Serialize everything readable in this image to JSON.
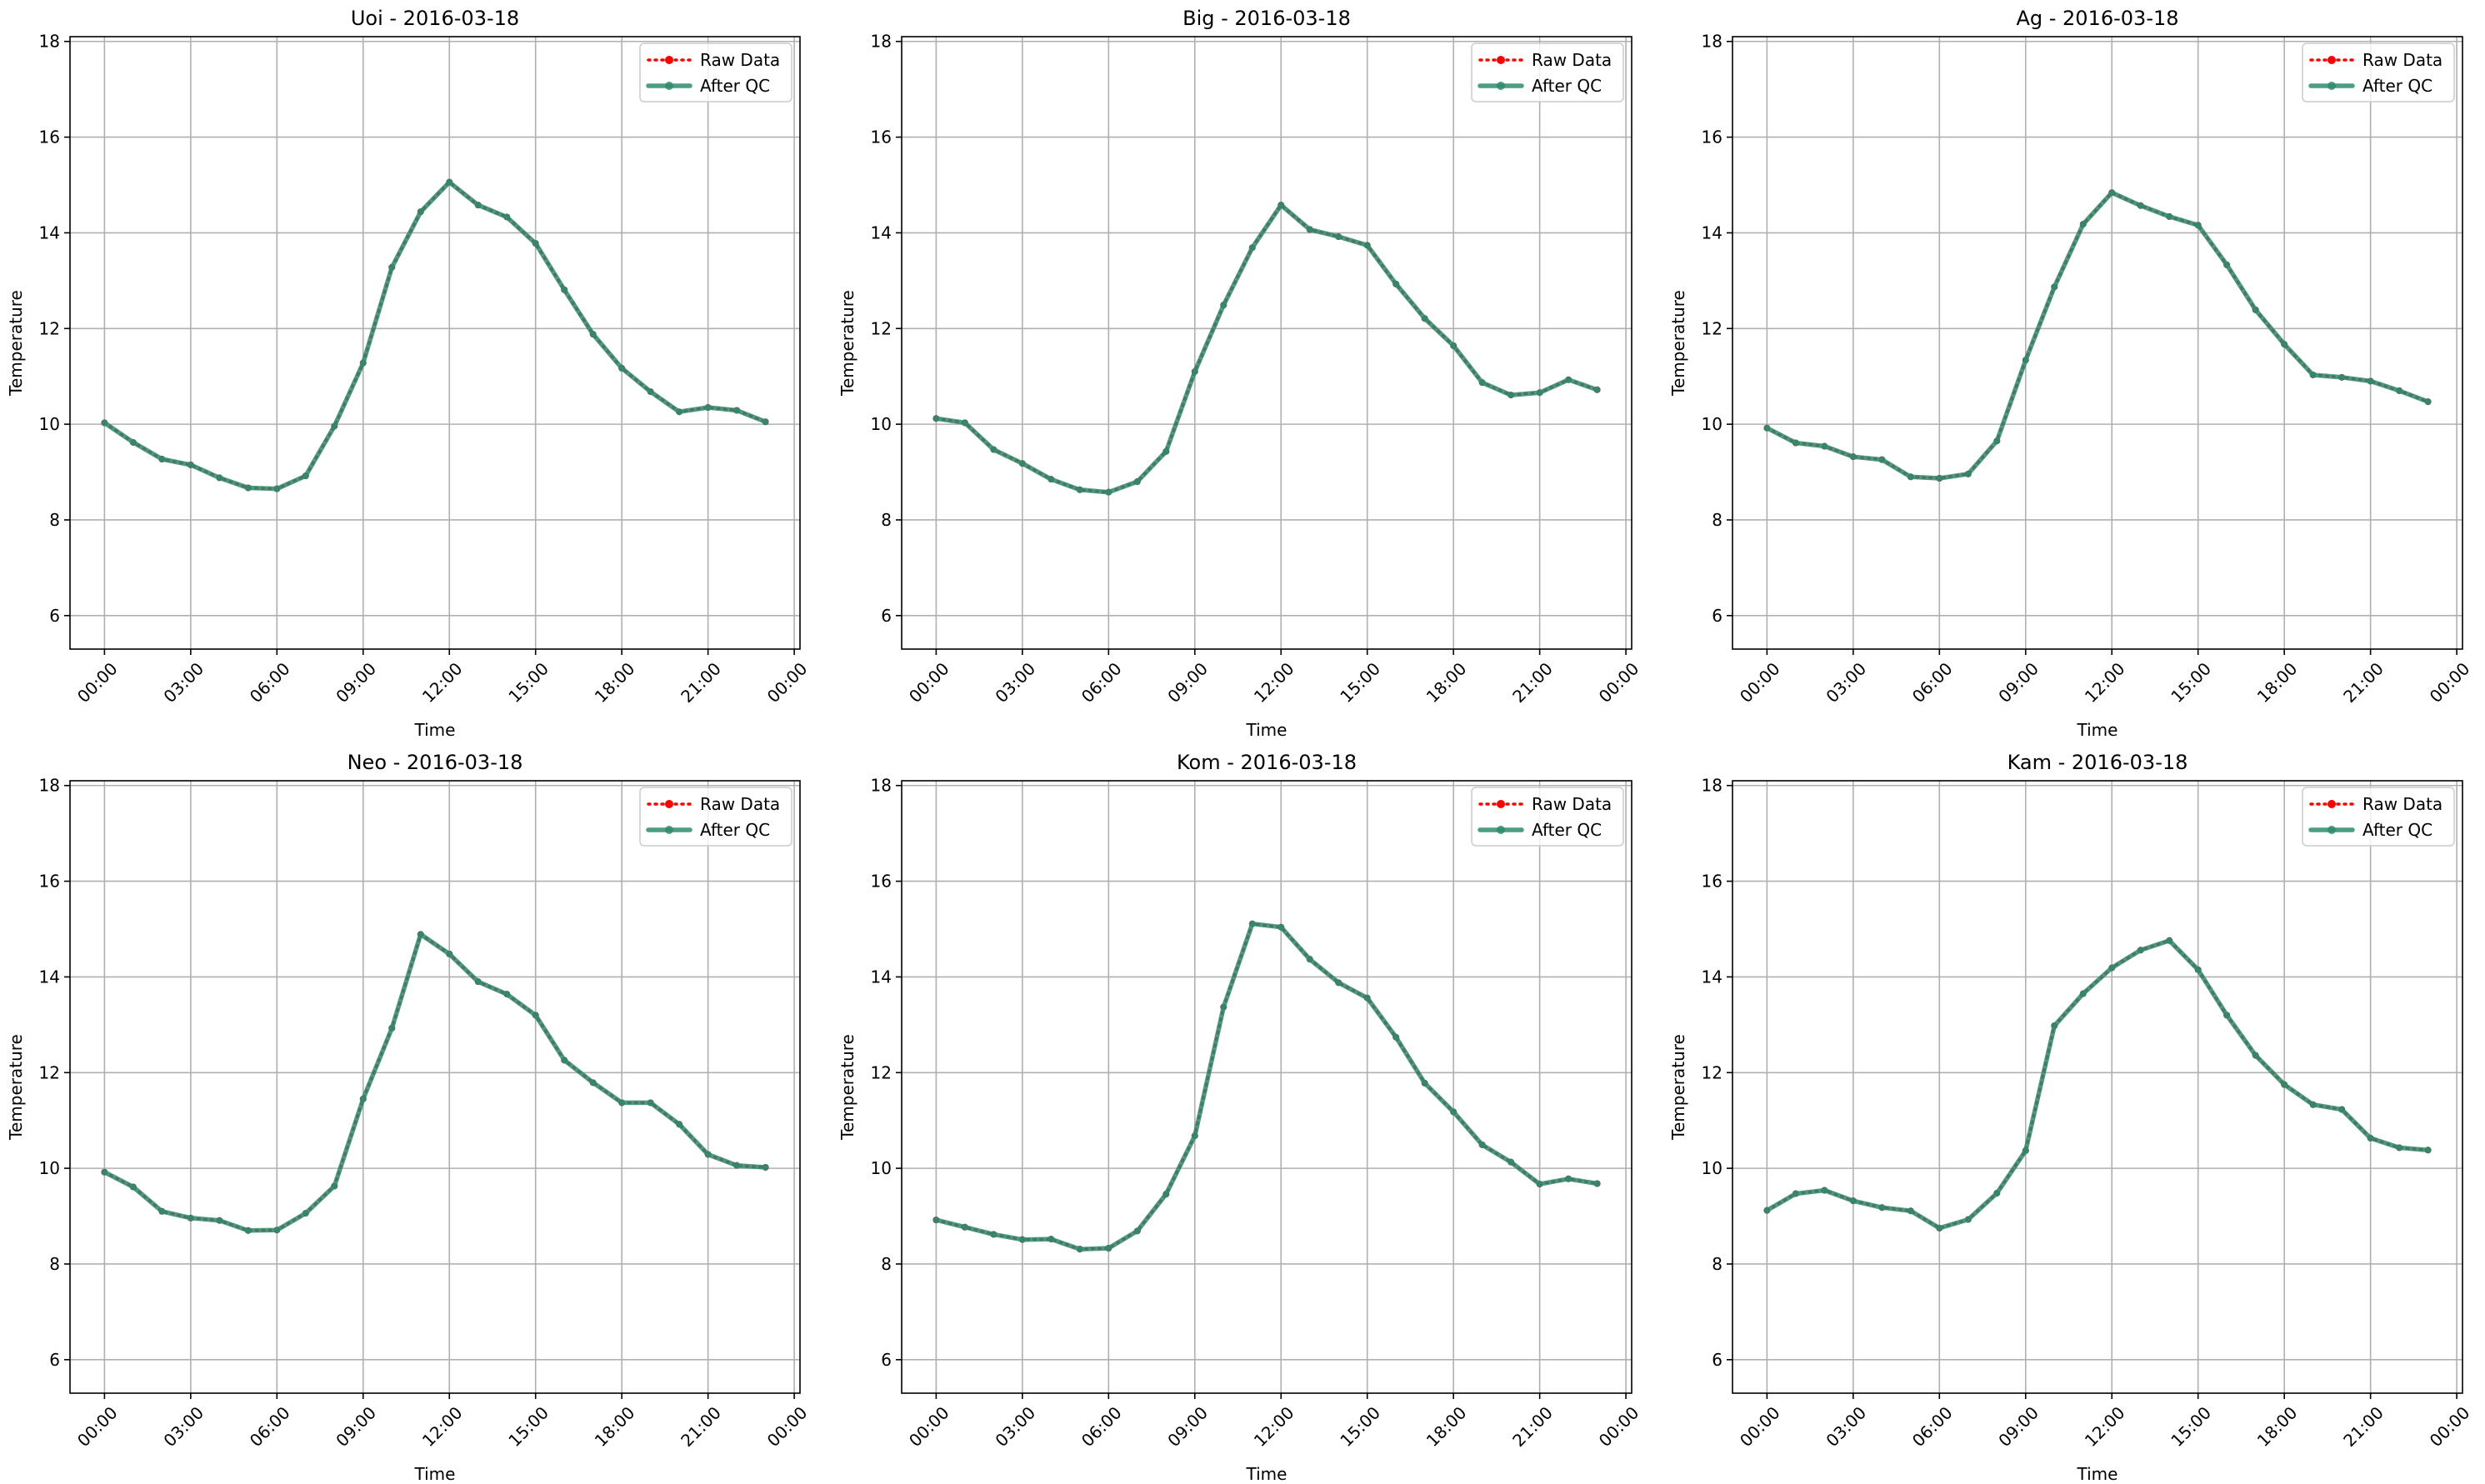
{
  "chart_data": [
    {
      "type": "line",
      "title": "Uoi - 2016-03-18",
      "xlabel": "Time",
      "ylabel": "Temperature",
      "x": [
        "00:00",
        "01:00",
        "02:00",
        "03:00",
        "04:00",
        "05:00",
        "06:00",
        "07:00",
        "08:00",
        "09:00",
        "10:00",
        "11:00",
        "12:00",
        "13:00",
        "14:00",
        "15:00",
        "16:00",
        "17:00",
        "18:00",
        "19:00",
        "20:00",
        "21:00",
        "22:00",
        "23:00"
      ],
      "x_ticks": [
        "00:00",
        "03:00",
        "06:00",
        "09:00",
        "12:00",
        "15:00",
        "18:00",
        "21:00",
        "00:00"
      ],
      "y_ticks": [
        "6",
        "8",
        "10",
        "12",
        "14",
        "16",
        "18"
      ],
      "ylim": [
        5.3,
        18.1
      ],
      "xlim": [
        -1.2,
        24.2
      ],
      "grid": true,
      "legend_position": "top-right",
      "series": [
        {
          "name": "Raw Data",
          "color": "#ff0000",
          "values": [
            10.03,
            9.62,
            9.27,
            9.15,
            8.88,
            8.67,
            8.65,
            8.92,
            9.96,
            11.28,
            13.28,
            14.44,
            15.06,
            14.58,
            14.33,
            13.78,
            12.81,
            11.88,
            11.17,
            10.68,
            10.26,
            10.35,
            10.29,
            10.05
          ]
        },
        {
          "name": "After QC",
          "color": "#2e8b6f",
          "values": [
            10.03,
            9.62,
            9.27,
            9.15,
            8.88,
            8.67,
            8.65,
            8.92,
            9.96,
            11.28,
            13.28,
            14.44,
            15.06,
            14.58,
            14.33,
            13.78,
            12.81,
            11.88,
            11.17,
            10.68,
            10.26,
            10.35,
            10.29,
            10.05
          ]
        }
      ]
    },
    {
      "type": "line",
      "title": "Big - 2016-03-18",
      "xlabel": "Time",
      "ylabel": "Temperature",
      "x": [
        "00:00",
        "01:00",
        "02:00",
        "03:00",
        "04:00",
        "05:00",
        "06:00",
        "07:00",
        "08:00",
        "09:00",
        "10:00",
        "11:00",
        "12:00",
        "13:00",
        "14:00",
        "15:00",
        "16:00",
        "17:00",
        "18:00",
        "19:00",
        "20:00",
        "21:00",
        "22:00",
        "23:00"
      ],
      "x_ticks": [
        "00:00",
        "03:00",
        "06:00",
        "09:00",
        "12:00",
        "15:00",
        "18:00",
        "21:00",
        "00:00"
      ],
      "y_ticks": [
        "6",
        "8",
        "10",
        "12",
        "14",
        "16",
        "18"
      ],
      "ylim": [
        5.3,
        18.1
      ],
      "xlim": [
        -1.2,
        24.2
      ],
      "grid": true,
      "legend_position": "top-right",
      "series": [
        {
          "name": "Raw Data",
          "color": "#ff0000",
          "values": [
            10.12,
            10.03,
            9.47,
            9.18,
            8.85,
            8.63,
            8.58,
            8.8,
            9.43,
            11.1,
            12.49,
            13.69,
            14.58,
            14.07,
            13.92,
            13.74,
            12.93,
            12.21,
            11.64,
            10.87,
            10.61,
            10.66,
            10.93,
            10.72
          ]
        },
        {
          "name": "After QC",
          "color": "#2e8b6f",
          "values": [
            10.12,
            10.03,
            9.47,
            9.18,
            8.85,
            8.63,
            8.58,
            8.8,
            9.43,
            11.1,
            12.49,
            13.69,
            14.58,
            14.07,
            13.92,
            13.74,
            12.93,
            12.21,
            11.64,
            10.87,
            10.61,
            10.66,
            10.93,
            10.72
          ]
        }
      ]
    },
    {
      "type": "line",
      "title": "Ag - 2016-03-18",
      "xlabel": "Time",
      "ylabel": "Temperature",
      "x": [
        "00:00",
        "01:00",
        "02:00",
        "03:00",
        "04:00",
        "05:00",
        "06:00",
        "07:00",
        "08:00",
        "09:00",
        "10:00",
        "11:00",
        "12:00",
        "13:00",
        "14:00",
        "15:00",
        "16:00",
        "17:00",
        "18:00",
        "19:00",
        "20:00",
        "21:00",
        "22:00",
        "23:00"
      ],
      "x_ticks": [
        "00:00",
        "03:00",
        "06:00",
        "09:00",
        "12:00",
        "15:00",
        "18:00",
        "21:00",
        "00:00"
      ],
      "y_ticks": [
        "6",
        "8",
        "10",
        "12",
        "14",
        "16",
        "18"
      ],
      "ylim": [
        5.3,
        18.1
      ],
      "xlim": [
        -1.2,
        24.2
      ],
      "grid": true,
      "legend_position": "top-right",
      "series": [
        {
          "name": "Raw Data",
          "color": "#ff0000",
          "values": [
            9.92,
            9.61,
            9.54,
            9.32,
            9.26,
            8.9,
            8.87,
            8.96,
            9.65,
            11.34,
            12.87,
            14.18,
            14.84,
            14.57,
            14.34,
            14.16,
            13.33,
            12.39,
            11.67,
            11.03,
            10.98,
            10.9,
            10.7,
            10.47
          ]
        },
        {
          "name": "After QC",
          "color": "#2e8b6f",
          "values": [
            9.92,
            9.61,
            9.54,
            9.32,
            9.26,
            8.9,
            8.87,
            8.96,
            9.65,
            11.34,
            12.87,
            14.18,
            14.84,
            14.57,
            14.34,
            14.16,
            13.33,
            12.39,
            11.67,
            11.03,
            10.98,
            10.9,
            10.7,
            10.47
          ]
        }
      ]
    },
    {
      "type": "line",
      "title": "Neo - 2016-03-18",
      "xlabel": "Time",
      "ylabel": "Temperature",
      "x": [
        "00:00",
        "01:00",
        "02:00",
        "03:00",
        "04:00",
        "05:00",
        "06:00",
        "07:00",
        "08:00",
        "09:00",
        "10:00",
        "11:00",
        "12:00",
        "13:00",
        "14:00",
        "15:00",
        "16:00",
        "17:00",
        "18:00",
        "19:00",
        "20:00",
        "21:00",
        "22:00",
        "23:00"
      ],
      "x_ticks": [
        "00:00",
        "03:00",
        "06:00",
        "09:00",
        "12:00",
        "15:00",
        "18:00",
        "21:00",
        "00:00"
      ],
      "y_ticks": [
        "6",
        "8",
        "10",
        "12",
        "14",
        "16",
        "18"
      ],
      "ylim": [
        5.3,
        18.1
      ],
      "xlim": [
        -1.2,
        24.2
      ],
      "grid": true,
      "legend_position": "top-right",
      "series": [
        {
          "name": "Raw Data",
          "color": "#ff0000",
          "values": [
            9.92,
            9.61,
            9.1,
            8.96,
            8.91,
            8.7,
            8.71,
            9.06,
            9.63,
            11.45,
            12.93,
            14.89,
            14.48,
            13.9,
            13.64,
            13.2,
            12.26,
            11.79,
            11.37,
            11.37,
            10.92,
            10.29,
            10.06,
            10.02
          ]
        },
        {
          "name": "After QC",
          "color": "#2e8b6f",
          "values": [
            9.92,
            9.61,
            9.1,
            8.96,
            8.91,
            8.7,
            8.71,
            9.06,
            9.63,
            11.45,
            12.93,
            14.89,
            14.48,
            13.9,
            13.64,
            13.2,
            12.26,
            11.79,
            11.37,
            11.37,
            10.92,
            10.29,
            10.06,
            10.02
          ]
        }
      ]
    },
    {
      "type": "line",
      "title": "Kom - 2016-03-18",
      "xlabel": "Time",
      "ylabel": "Temperature",
      "x": [
        "00:00",
        "01:00",
        "02:00",
        "03:00",
        "04:00",
        "05:00",
        "06:00",
        "07:00",
        "08:00",
        "09:00",
        "10:00",
        "11:00",
        "12:00",
        "13:00",
        "14:00",
        "15:00",
        "16:00",
        "17:00",
        "18:00",
        "19:00",
        "20:00",
        "21:00",
        "22:00",
        "23:00"
      ],
      "x_ticks": [
        "00:00",
        "03:00",
        "06:00",
        "09:00",
        "12:00",
        "15:00",
        "18:00",
        "21:00",
        "00:00"
      ],
      "y_ticks": [
        "6",
        "8",
        "10",
        "12",
        "14",
        "16",
        "18"
      ],
      "ylim": [
        5.3,
        18.1
      ],
      "xlim": [
        -1.2,
        24.2
      ],
      "grid": true,
      "legend_position": "top-right",
      "series": [
        {
          "name": "Raw Data",
          "color": "#ff0000",
          "values": [
            8.92,
            8.77,
            8.62,
            8.51,
            8.52,
            8.31,
            8.33,
            8.69,
            9.46,
            10.68,
            13.37,
            15.11,
            15.04,
            14.37,
            13.88,
            13.56,
            12.74,
            11.78,
            11.18,
            10.49,
            10.13,
            9.67,
            9.78,
            9.68
          ]
        },
        {
          "name": "After QC",
          "color": "#2e8b6f",
          "values": [
            8.92,
            8.77,
            8.62,
            8.51,
            8.52,
            8.31,
            8.33,
            8.69,
            9.46,
            10.68,
            13.37,
            15.11,
            15.04,
            14.37,
            13.88,
            13.56,
            12.74,
            11.78,
            11.18,
            10.49,
            10.13,
            9.67,
            9.78,
            9.68
          ]
        }
      ]
    },
    {
      "type": "line",
      "title": "Kam - 2016-03-18",
      "xlabel": "Time",
      "ylabel": "Temperature",
      "x": [
        "00:00",
        "01:00",
        "02:00",
        "03:00",
        "04:00",
        "05:00",
        "06:00",
        "07:00",
        "08:00",
        "09:00",
        "10:00",
        "11:00",
        "12:00",
        "13:00",
        "14:00",
        "15:00",
        "16:00",
        "17:00",
        "18:00",
        "19:00",
        "20:00",
        "21:00",
        "22:00",
        "23:00"
      ],
      "x_ticks": [
        "00:00",
        "03:00",
        "06:00",
        "09:00",
        "12:00",
        "15:00",
        "18:00",
        "21:00",
        "00:00"
      ],
      "y_ticks": [
        "6",
        "8",
        "10",
        "12",
        "14",
        "16",
        "18"
      ],
      "ylim": [
        5.3,
        18.1
      ],
      "xlim": [
        -1.2,
        24.2
      ],
      "grid": true,
      "legend_position": "top-right",
      "series": [
        {
          "name": "Raw Data",
          "color": "#ff0000",
          "values": [
            9.12,
            9.47,
            9.54,
            9.32,
            9.18,
            9.11,
            8.75,
            8.93,
            9.48,
            10.37,
            12.98,
            13.65,
            14.19,
            14.56,
            14.76,
            14.15,
            13.2,
            12.36,
            11.75,
            11.33,
            11.23,
            10.63,
            10.43,
            10.38
          ]
        },
        {
          "name": "After QC",
          "color": "#2e8b6f",
          "values": [
            9.12,
            9.47,
            9.54,
            9.32,
            9.18,
            9.11,
            8.75,
            8.93,
            9.48,
            10.37,
            12.98,
            13.65,
            14.19,
            14.56,
            14.76,
            14.15,
            13.2,
            12.36,
            11.75,
            11.33,
            11.23,
            10.63,
            10.43,
            10.38
          ]
        }
      ]
    }
  ]
}
